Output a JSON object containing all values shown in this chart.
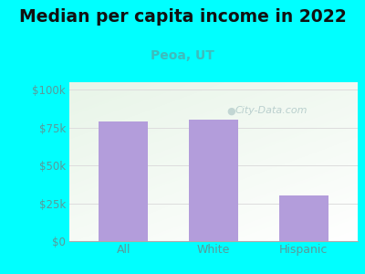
{
  "title": "Median per capita income in 2022",
  "subtitle": "Peoa, UT",
  "categories": [
    "All",
    "White",
    "Hispanic"
  ],
  "values": [
    79000,
    80500,
    30000
  ],
  "bar_color": "#b39ddb",
  "title_fontsize": 13.5,
  "title_color": "#111111",
  "subtitle_fontsize": 10,
  "subtitle_color": "#3dbdbd",
  "tick_label_color": "#5a9a9a",
  "yticks": [
    0,
    25000,
    50000,
    75000,
    100000
  ],
  "ytick_labels": [
    "$0",
    "$25k",
    "$50k",
    "$75k",
    "$100k"
  ],
  "ylim": [
    0,
    105000
  ],
  "bg_outer": "#00ffff",
  "bg_plot_top_left": "#e8f5e9",
  "bg_plot_right": "#ffffff",
  "watermark": "City-Data.com",
  "watermark_color": "#b0c8c8",
  "grid_color": "#dddddd"
}
